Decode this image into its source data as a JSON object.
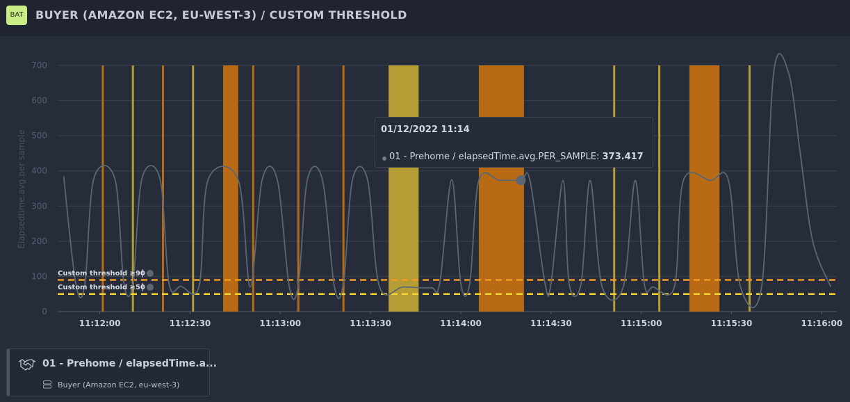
{
  "header": {
    "badge": "BAT",
    "title": "BUYER (AMAZON EC2, EU-WEST-3) / CUSTOM THRESHOLD"
  },
  "colors": {
    "background": "#262c3a",
    "header_bg": "#1f2430",
    "series": "#5b6775",
    "threshold_orange": "#f29b22",
    "threshold_yellow": "#f2d335",
    "band_orange": "#b86a14",
    "band_yellow": "#b59c34",
    "grid": "#3a4150"
  },
  "tooltip": {
    "date": "01/12/2022 11:14",
    "series_label": "01 - Prehome / elapsedTime.avg.PER_SAMPLE:",
    "value": "373.417"
  },
  "card": {
    "title": "01 - Prehome / elapsedTime.a...",
    "subtitle": "Buyer (Amazon EC2, eu-west-3)"
  },
  "chart_data": {
    "type": "line",
    "ylabel": "Elapsedtime.avg.per sample",
    "ylim": [
      0,
      700
    ],
    "yticks": [
      0,
      100,
      200,
      300,
      400,
      500,
      600,
      700
    ],
    "xrange": [
      "11:11:46",
      "11:16:05"
    ],
    "xticks": [
      "11:12:00",
      "11:12:30",
      "11:13:00",
      "11:13:30",
      "11:14:00",
      "11:14:30",
      "11:15:00",
      "11:15:30",
      "11:16:00"
    ],
    "grid": true,
    "series": [
      {
        "name": "01 - Prehome / elapsedTime.avg.PER_SAMPLE",
        "points": [
          [
            "11:11:48",
            385
          ],
          [
            "11:11:52",
            80
          ],
          [
            "11:11:55",
            75
          ],
          [
            "11:11:58",
            378
          ],
          [
            "11:12:05",
            378
          ],
          [
            "11:12:08",
            80
          ],
          [
            "11:12:11",
            80
          ],
          [
            "11:12:14",
            378
          ],
          [
            "11:12:20",
            378
          ],
          [
            "11:12:23",
            80
          ],
          [
            "11:12:27",
            72
          ],
          [
            "11:12:33",
            72
          ],
          [
            "11:12:36",
            375
          ],
          [
            "11:12:46",
            375
          ],
          [
            "11:12:50",
            70
          ],
          [
            "11:12:54",
            375
          ],
          [
            "11:12:59",
            375
          ],
          [
            "11:13:03",
            70
          ],
          [
            "11:13:06",
            75
          ],
          [
            "11:13:09",
            375
          ],
          [
            "11:13:14",
            375
          ],
          [
            "11:13:18",
            70
          ],
          [
            "11:13:21",
            80
          ],
          [
            "11:13:24",
            375
          ],
          [
            "11:13:29",
            375
          ],
          [
            "11:13:33",
            70
          ],
          [
            "11:13:41",
            70
          ],
          [
            "11:13:50",
            68
          ],
          [
            "11:13:53",
            80
          ],
          [
            "11:13:57",
            375
          ],
          [
            "11:14:00",
            80
          ],
          [
            "11:14:03",
            80
          ],
          [
            "11:14:06",
            373
          ],
          [
            "11:14:13",
            373
          ],
          [
            "11:14:20",
            373
          ],
          [
            "11:14:23",
            373
          ],
          [
            "11:14:28",
            80
          ],
          [
            "11:14:30",
            80
          ],
          [
            "11:14:34",
            373
          ],
          [
            "11:14:36",
            80
          ],
          [
            "11:14:40",
            80
          ],
          [
            "11:14:43",
            373
          ],
          [
            "11:14:47",
            70
          ],
          [
            "11:14:54",
            70
          ],
          [
            "11:14:58",
            373
          ],
          [
            "11:15:01",
            80
          ],
          [
            "11:15:04",
            70
          ],
          [
            "11:15:11",
            70
          ],
          [
            "11:15:14",
            373
          ],
          [
            "11:15:23",
            373
          ],
          [
            "11:15:29",
            373
          ],
          [
            "11:15:33",
            70
          ],
          [
            "11:15:40",
            70
          ],
          [
            "11:15:44",
            678
          ],
          [
            "11:15:49",
            678
          ],
          [
            "11:15:53",
            440
          ],
          [
            "11:15:57",
            200
          ],
          [
            "11:16:03",
            70
          ]
        ]
      }
    ],
    "thresholds": [
      {
        "label": "Custom threshold ≥90",
        "value": 90,
        "color": "#f29b22",
        "style": "dashed"
      },
      {
        "label": "Custom threshold ≥50",
        "value": 50,
        "color": "#f2d335",
        "style": "dashed"
      }
    ],
    "threshold_bands": [
      {
        "start": "11:12:01",
        "end": "11:12:01",
        "color": "orange"
      },
      {
        "start": "11:12:11",
        "end": "11:12:11",
        "color": "yellow"
      },
      {
        "start": "11:12:21",
        "end": "11:12:21",
        "color": "orange"
      },
      {
        "start": "11:12:31",
        "end": "11:12:31",
        "color": "yellow"
      },
      {
        "start": "11:12:41",
        "end": "11:12:46",
        "color": "orange"
      },
      {
        "start": "11:12:51",
        "end": "11:12:51",
        "color": "orange"
      },
      {
        "start": "11:13:06",
        "end": "11:13:06",
        "color": "orange"
      },
      {
        "start": "11:13:21",
        "end": "11:13:21",
        "color": "orange"
      },
      {
        "start": "11:13:36",
        "end": "11:13:46",
        "color": "yellow"
      },
      {
        "start": "11:14:06",
        "end": "11:14:21",
        "color": "orange"
      },
      {
        "start": "11:14:51",
        "end": "11:14:51",
        "color": "yellow"
      },
      {
        "start": "11:15:06",
        "end": "11:15:06",
        "color": "yellow"
      },
      {
        "start": "11:15:16",
        "end": "11:15:26",
        "color": "orange"
      },
      {
        "start": "11:15:36",
        "end": "11:15:36",
        "color": "yellow"
      }
    ],
    "highlight_point": {
      "x": "11:14:20",
      "y": 373.417
    }
  }
}
